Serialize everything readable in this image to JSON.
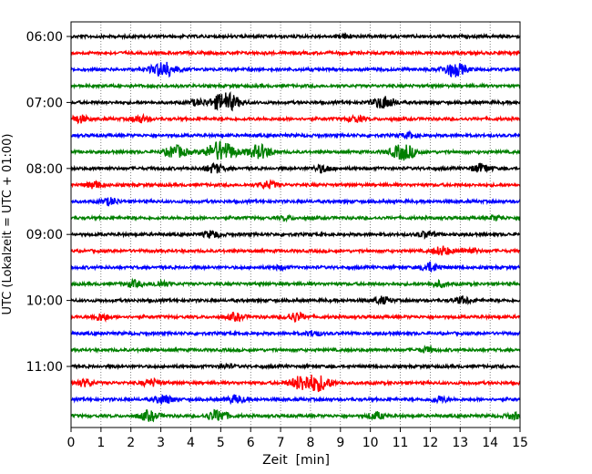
{
  "chart_data": {
    "type": "line",
    "plot_style": "helicorder",
    "xlabel": "Zeit  [min]",
    "ylabel": "UTC (Lokalzeit = UTC + 01:00)",
    "xlim": [
      0,
      15
    ],
    "x_ticks": [
      "0",
      "1",
      "2",
      "3",
      "4",
      "5",
      "6",
      "7",
      "8",
      "9",
      "10",
      "11",
      "12",
      "13",
      "14",
      "15"
    ],
    "y_tick_labels": [
      "06:00",
      "07:00",
      "08:00",
      "09:00",
      "10:00",
      "11:00"
    ],
    "row_interval_minutes": 15,
    "row_colors": [
      "#000000",
      "#ff0000",
      "#0000ff",
      "#008000"
    ],
    "grid": "vertical dotted at each minute",
    "series": [
      {
        "row_start": "06:00",
        "events": [
          {
            "t": 9.2,
            "amp": 0.22
          }
        ]
      },
      {
        "row_start": "06:15",
        "events": []
      },
      {
        "row_start": "06:30",
        "events": [
          {
            "t": 3.1,
            "amp": 0.9
          },
          {
            "t": 12.8,
            "amp": 0.8
          }
        ]
      },
      {
        "row_start": "06:45",
        "events": []
      },
      {
        "row_start": "07:00",
        "events": [
          {
            "t": 5.15,
            "amp": 1.1
          },
          {
            "t": 10.45,
            "amp": 0.7
          },
          {
            "t": 4.2,
            "amp": 0.3
          }
        ]
      },
      {
        "row_start": "07:15",
        "events": [
          {
            "t": 0.3,
            "amp": 0.4
          },
          {
            "t": 2.3,
            "amp": 0.4
          },
          {
            "t": 9.5,
            "amp": 0.35
          }
        ]
      },
      {
        "row_start": "07:30",
        "events": [
          {
            "t": 11.3,
            "amp": 0.3
          }
        ]
      },
      {
        "row_start": "07:45",
        "events": [
          {
            "t": 3.5,
            "amp": 0.7
          },
          {
            "t": 5.0,
            "amp": 1.2
          },
          {
            "t": 6.3,
            "amp": 0.8
          },
          {
            "t": 11.1,
            "amp": 0.9
          }
        ]
      },
      {
        "row_start": "08:00",
        "events": [
          {
            "t": 4.8,
            "amp": 0.5
          },
          {
            "t": 8.4,
            "amp": 0.4
          },
          {
            "t": 13.7,
            "amp": 0.5
          }
        ]
      },
      {
        "row_start": "08:15",
        "events": [
          {
            "t": 0.8,
            "amp": 0.4
          },
          {
            "t": 6.6,
            "amp": 0.4
          }
        ]
      },
      {
        "row_start": "08:30",
        "events": [
          {
            "t": 1.3,
            "amp": 0.4
          }
        ]
      },
      {
        "row_start": "08:45",
        "events": [
          {
            "t": 7.2,
            "amp": 0.2
          },
          {
            "t": 14.2,
            "amp": 0.25
          }
        ]
      },
      {
        "row_start": "09:00",
        "events": [
          {
            "t": 4.7,
            "amp": 0.4
          },
          {
            "t": 11.9,
            "amp": 0.35
          }
        ]
      },
      {
        "row_start": "09:15",
        "events": [
          {
            "t": 12.4,
            "amp": 0.5
          },
          {
            "t": 13.3,
            "amp": 0.35
          }
        ]
      },
      {
        "row_start": "09:30",
        "events": [
          {
            "t": 12.0,
            "amp": 0.5
          },
          {
            "t": 7.0,
            "amp": 0.2
          }
        ]
      },
      {
        "row_start": "09:45",
        "events": [
          {
            "t": 2.1,
            "amp": 0.35
          },
          {
            "t": 3.0,
            "amp": 0.35
          },
          {
            "t": 12.3,
            "amp": 0.3
          }
        ]
      },
      {
        "row_start": "10:00",
        "events": [
          {
            "t": 10.4,
            "amp": 0.4
          },
          {
            "t": 13.1,
            "amp": 0.4
          }
        ]
      },
      {
        "row_start": "10:15",
        "events": [
          {
            "t": 1.0,
            "amp": 0.4
          },
          {
            "t": 5.5,
            "amp": 0.4
          },
          {
            "t": 7.5,
            "amp": 0.5
          }
        ]
      },
      {
        "row_start": "10:30",
        "events": [
          {
            "t": 8.1,
            "amp": 0.3
          }
        ]
      },
      {
        "row_start": "10:45",
        "events": [
          {
            "t": 11.9,
            "amp": 0.3
          }
        ]
      },
      {
        "row_start": "11:00",
        "events": [
          {
            "t": 5.2,
            "amp": 0.2
          }
        ]
      },
      {
        "row_start": "11:15",
        "events": [
          {
            "t": 0.45,
            "amp": 0.4
          },
          {
            "t": 2.7,
            "amp": 0.4
          },
          {
            "t": 7.7,
            "amp": 0.8
          },
          {
            "t": 8.3,
            "amp": 0.85
          }
        ]
      },
      {
        "row_start": "11:30",
        "events": [
          {
            "t": 3.1,
            "amp": 0.5
          },
          {
            "t": 5.5,
            "amp": 0.45
          },
          {
            "t": 12.3,
            "amp": 0.35
          }
        ]
      },
      {
        "row_start": "11:45",
        "events": [
          {
            "t": 2.6,
            "amp": 0.55
          },
          {
            "t": 4.9,
            "amp": 0.65
          },
          {
            "t": 10.2,
            "amp": 0.4
          },
          {
            "t": 14.8,
            "amp": 0.35
          }
        ]
      }
    ]
  }
}
